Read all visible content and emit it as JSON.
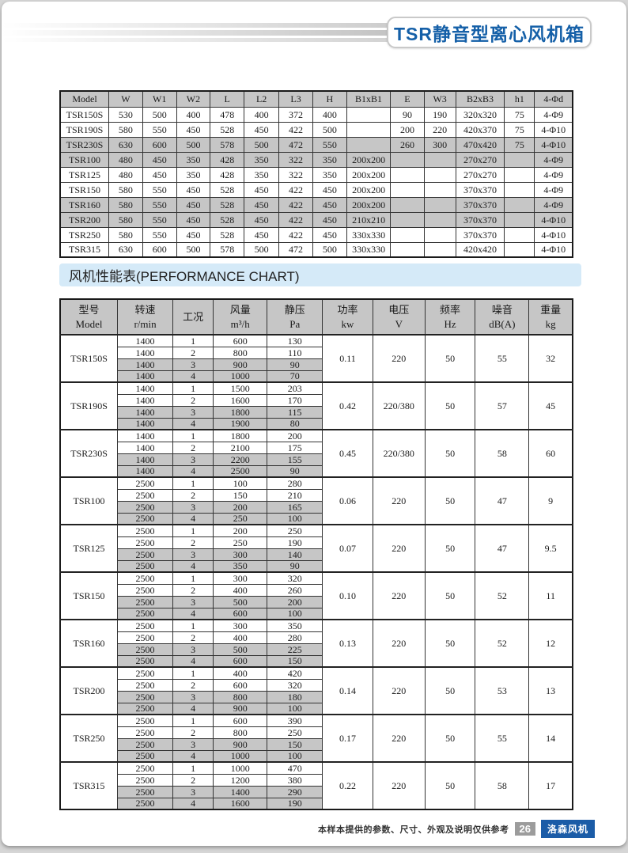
{
  "page_title": "TSR静音型离心风机箱",
  "section_header": "风机性能表(PERFORMANCE CHART)",
  "colors": {
    "accent_blue": "#1560a8",
    "section_bar_blue": "#d5eaf8",
    "table_gray": "#c6c6c6",
    "badge_gray": "#9c9c9c",
    "badge_blue": "#1b5ca7"
  },
  "dimension_table": {
    "headers": [
      "Model",
      "W",
      "W1",
      "W2",
      "L",
      "L2",
      "L3",
      "H",
      "B1xB1",
      "E",
      "W3",
      "B2xB3",
      "h1",
      "4-Φd"
    ],
    "rows": [
      {
        "shaded": false,
        "cells": [
          "TSR150S",
          "530",
          "500",
          "400",
          "478",
          "400",
          "372",
          "400",
          "",
          "90",
          "190",
          "320x320",
          "75",
          "4-Φ9"
        ]
      },
      {
        "shaded": false,
        "cells": [
          "TSR190S",
          "580",
          "550",
          "450",
          "528",
          "450",
          "422",
          "500",
          "",
          "200",
          "220",
          "420x370",
          "75",
          "4-Φ10"
        ]
      },
      {
        "shaded": true,
        "cells": [
          "TSR230S",
          "630",
          "600",
          "500",
          "578",
          "500",
          "472",
          "550",
          "",
          "260",
          "300",
          "470x420",
          "75",
          "4-Φ10"
        ]
      },
      {
        "shaded": true,
        "cells": [
          "TSR100",
          "480",
          "450",
          "350",
          "428",
          "350",
          "322",
          "350",
          "200x200",
          "",
          "",
          "270x270",
          "",
          "4-Φ9"
        ]
      },
      {
        "shaded": false,
        "cells": [
          "TSR125",
          "480",
          "450",
          "350",
          "428",
          "350",
          "322",
          "350",
          "200x200",
          "",
          "",
          "270x270",
          "",
          "4-Φ9"
        ]
      },
      {
        "shaded": false,
        "cells": [
          "TSR150",
          "580",
          "550",
          "450",
          "528",
          "450",
          "422",
          "450",
          "200x200",
          "",
          "",
          "370x370",
          "",
          "4-Φ9"
        ]
      },
      {
        "shaded": true,
        "cells": [
          "TSR160",
          "580",
          "550",
          "450",
          "528",
          "450",
          "422",
          "450",
          "200x200",
          "",
          "",
          "370x370",
          "",
          "4-Φ9"
        ]
      },
      {
        "shaded": true,
        "cells": [
          "TSR200",
          "580",
          "550",
          "450",
          "528",
          "450",
          "422",
          "450",
          "210x210",
          "",
          "",
          "370x370",
          "",
          "4-Φ10"
        ]
      },
      {
        "shaded": false,
        "cells": [
          "TSR250",
          "580",
          "550",
          "450",
          "528",
          "450",
          "422",
          "450",
          "330x330",
          "",
          "",
          "370x370",
          "",
          "4-Φ10"
        ]
      },
      {
        "shaded": false,
        "cells": [
          "TSR315",
          "630",
          "600",
          "500",
          "578",
          "500",
          "472",
          "500",
          "330x330",
          "",
          "",
          "420x420",
          "",
          "4-Φ10"
        ]
      }
    ]
  },
  "performance_table": {
    "headers": [
      [
        "型号",
        "Model"
      ],
      [
        "转速",
        "r/min"
      ],
      [
        "工况",
        ""
      ],
      [
        "风量",
        "m³/h"
      ],
      [
        "静压",
        "Pa"
      ],
      [
        "功率",
        "kw"
      ],
      [
        "电压",
        "V"
      ],
      [
        "频率",
        "Hz"
      ],
      [
        "噪音",
        "dB(A)"
      ],
      [
        "重量",
        "kg"
      ]
    ],
    "blocks": [
      {
        "model": "TSR150S",
        "power": "0.11",
        "voltage": "220",
        "frequency": "50",
        "noise": "55",
        "weight": "32",
        "rows": [
          [
            "1400",
            "1",
            "600",
            "130"
          ],
          [
            "1400",
            "2",
            "800",
            "110"
          ],
          [
            "1400",
            "3",
            "900",
            "90"
          ],
          [
            "1400",
            "4",
            "1000",
            "70"
          ]
        ]
      },
      {
        "model": "TSR190S",
        "power": "0.42",
        "voltage": "220/380",
        "frequency": "50",
        "noise": "57",
        "weight": "45",
        "rows": [
          [
            "1400",
            "1",
            "1500",
            "203"
          ],
          [
            "1400",
            "2",
            "1600",
            "170"
          ],
          [
            "1400",
            "3",
            "1800",
            "115"
          ],
          [
            "1400",
            "4",
            "1900",
            "80"
          ]
        ]
      },
      {
        "model": "TSR230S",
        "power": "0.45",
        "voltage": "220/380",
        "frequency": "50",
        "noise": "58",
        "weight": "60",
        "rows": [
          [
            "1400",
            "1",
            "1800",
            "200"
          ],
          [
            "1400",
            "2",
            "2100",
            "175"
          ],
          [
            "1400",
            "3",
            "2200",
            "155"
          ],
          [
            "1400",
            "4",
            "2500",
            "90"
          ]
        ]
      },
      {
        "model": "TSR100",
        "power": "0.06",
        "voltage": "220",
        "frequency": "50",
        "noise": "47",
        "weight": "9",
        "rows": [
          [
            "2500",
            "1",
            "100",
            "280"
          ],
          [
            "2500",
            "2",
            "150",
            "210"
          ],
          [
            "2500",
            "3",
            "200",
            "165"
          ],
          [
            "2500",
            "4",
            "250",
            "100"
          ]
        ]
      },
      {
        "model": "TSR125",
        "power": "0.07",
        "voltage": "220",
        "frequency": "50",
        "noise": "47",
        "weight": "9.5",
        "rows": [
          [
            "2500",
            "1",
            "200",
            "250"
          ],
          [
            "2500",
            "2",
            "250",
            "190"
          ],
          [
            "2500",
            "3",
            "300",
            "140"
          ],
          [
            "2500",
            "4",
            "350",
            "90"
          ]
        ]
      },
      {
        "model": "TSR150",
        "power": "0.10",
        "voltage": "220",
        "frequency": "50",
        "noise": "52",
        "weight": "11",
        "rows": [
          [
            "2500",
            "1",
            "300",
            "320"
          ],
          [
            "2500",
            "2",
            "400",
            "260"
          ],
          [
            "2500",
            "3",
            "500",
            "200"
          ],
          [
            "2500",
            "4",
            "600",
            "100"
          ]
        ]
      },
      {
        "model": "TSR160",
        "power": "0.13",
        "voltage": "220",
        "frequency": "50",
        "noise": "52",
        "weight": "12",
        "rows": [
          [
            "2500",
            "1",
            "300",
            "350"
          ],
          [
            "2500",
            "2",
            "400",
            "280"
          ],
          [
            "2500",
            "3",
            "500",
            "225"
          ],
          [
            "2500",
            "4",
            "600",
            "150"
          ]
        ]
      },
      {
        "model": "TSR200",
        "power": "0.14",
        "voltage": "220",
        "frequency": "50",
        "noise": "53",
        "weight": "13",
        "rows": [
          [
            "2500",
            "1",
            "400",
            "420"
          ],
          [
            "2500",
            "2",
            "600",
            "320"
          ],
          [
            "2500",
            "3",
            "800",
            "180"
          ],
          [
            "2500",
            "4",
            "900",
            "100"
          ]
        ]
      },
      {
        "model": "TSR250",
        "power": "0.17",
        "voltage": "220",
        "frequency": "50",
        "noise": "55",
        "weight": "14",
        "rows": [
          [
            "2500",
            "1",
            "600",
            "390"
          ],
          [
            "2500",
            "2",
            "800",
            "250"
          ],
          [
            "2500",
            "3",
            "900",
            "150"
          ],
          [
            "2500",
            "4",
            "1000",
            "100"
          ]
        ]
      },
      {
        "model": "TSR315",
        "power": "0.22",
        "voltage": "220",
        "frequency": "50",
        "noise": "58",
        "weight": "17",
        "rows": [
          [
            "2500",
            "1",
            "1000",
            "470"
          ],
          [
            "2500",
            "2",
            "1200",
            "380"
          ],
          [
            "2500",
            "3",
            "1400",
            "290"
          ],
          [
            "2500",
            "4",
            "1600",
            "190"
          ]
        ]
      }
    ]
  },
  "footer": {
    "note": "本样本提供的参数、尺寸、外观及说明仅供参考",
    "page_number": "26",
    "brand": "洛森风机"
  }
}
